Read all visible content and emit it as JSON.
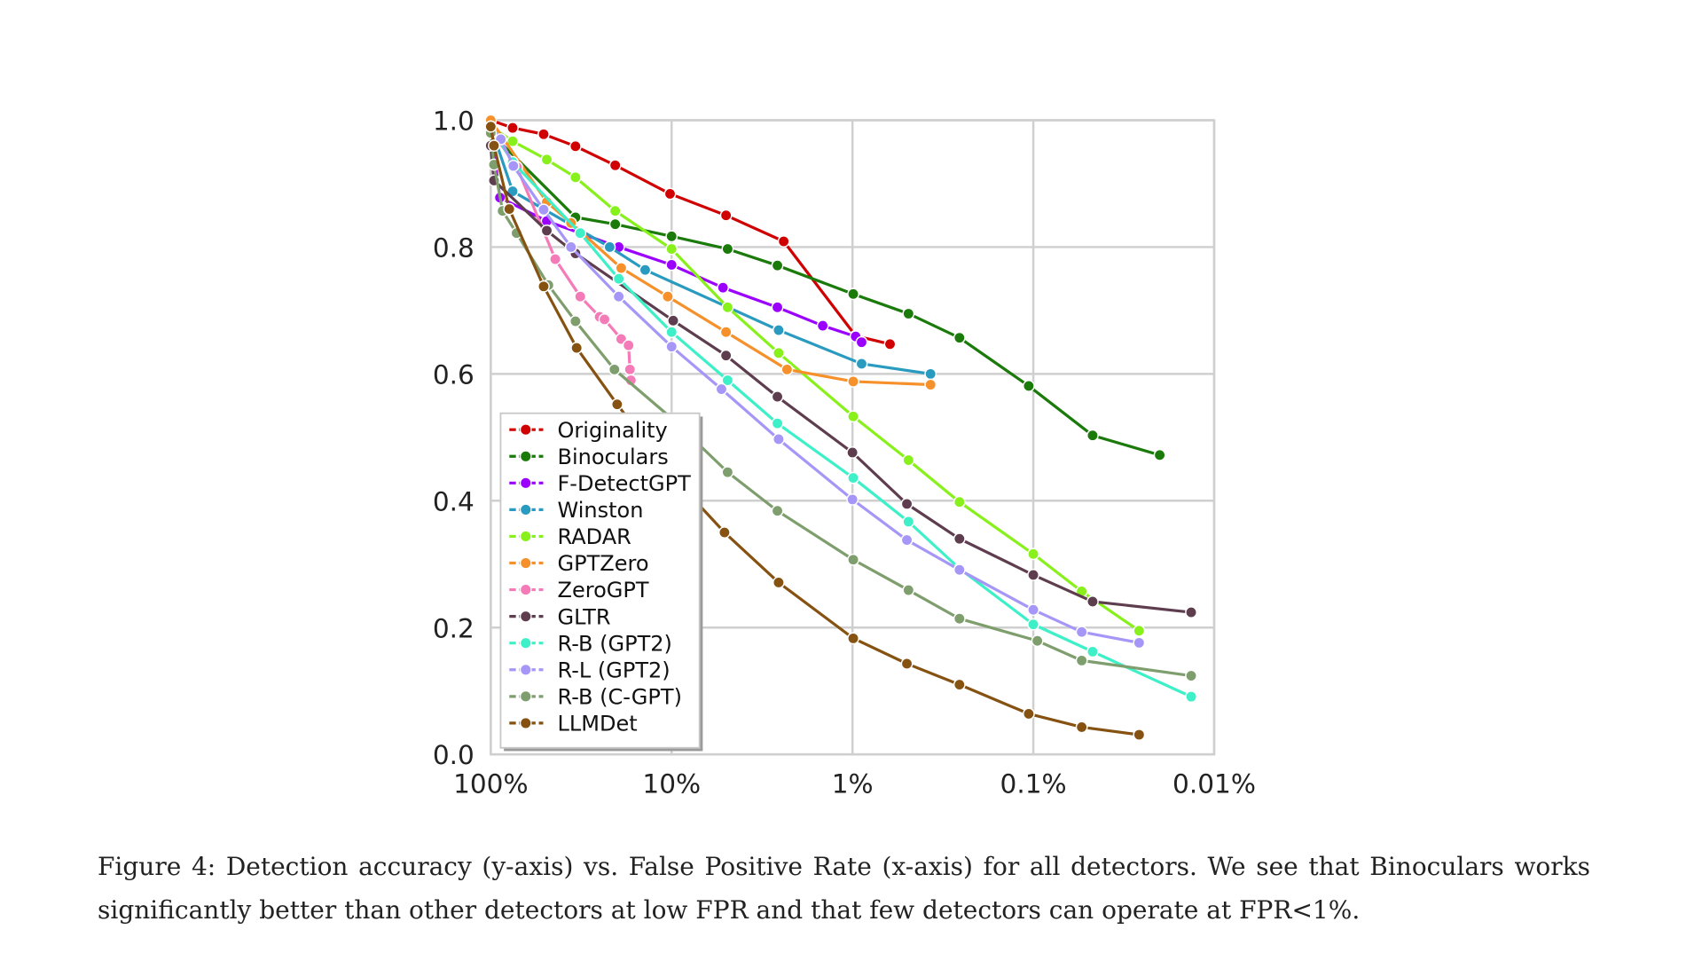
{
  "caption": "Figure 4: Detection accuracy (y-axis) vs. False Positive Rate (x-axis) for all detectors. We see that Binoculars works significantly better than other detectors at low FPR and that few detectors can operate at FPR<1%.",
  "chart_data": {
    "type": "line",
    "title": "",
    "xlabel": "",
    "ylabel": "",
    "x_scale": "log-reversed",
    "x_unit": "FPR %",
    "xlim": [
      100,
      0.01
    ],
    "ylim": [
      0,
      1.0
    ],
    "x_ticks": [
      100,
      10,
      1,
      0.1,
      0.01
    ],
    "x_tick_labels": [
      "100%",
      "10%",
      "1%",
      "0.1%",
      "0.01%"
    ],
    "y_ticks": [
      0,
      0.2,
      0.4,
      0.6,
      0.8,
      1.0
    ],
    "y_tick_labels": [
      "0.0",
      "0.2",
      "0.4",
      "0.6",
      "0.8",
      "1.0"
    ],
    "grid": true,
    "legend_position": "lower-left",
    "series": [
      {
        "name": "Originality",
        "color": "#d00000",
        "points": [
          [
            100,
            1.0
          ],
          [
            75.7,
            0.988
          ],
          [
            51,
            0.978
          ],
          [
            34,
            0.959
          ],
          [
            20.5,
            0.929
          ],
          [
            10.2,
            0.884
          ],
          [
            5.0,
            0.85
          ],
          [
            2.4,
            0.809
          ],
          [
            0.96,
            0.66
          ],
          [
            0.62,
            0.647
          ]
        ]
      },
      {
        "name": "Binoculars",
        "color": "#1a7a0a",
        "points": [
          [
            100,
            0.98
          ],
          [
            34,
            0.847
          ],
          [
            20.5,
            0.836
          ],
          [
            10,
            0.817
          ],
          [
            4.9,
            0.797
          ],
          [
            2.6,
            0.771
          ],
          [
            0.99,
            0.726
          ],
          [
            0.49,
            0.695
          ],
          [
            0.256,
            0.657
          ],
          [
            0.106,
            0.581
          ],
          [
            0.047,
            0.503
          ],
          [
            0.02,
            0.472
          ]
        ]
      },
      {
        "name": "F-DetectGPT",
        "color": "#9b00ff",
        "points": [
          [
            100,
            0.99
          ],
          [
            89,
            0.878
          ],
          [
            49,
            0.841
          ],
          [
            19.6,
            0.8
          ],
          [
            10,
            0.772
          ],
          [
            5.2,
            0.736
          ],
          [
            2.6,
            0.705
          ],
          [
            1.46,
            0.676
          ],
          [
            0.96,
            0.659
          ],
          [
            0.89,
            0.65
          ]
        ]
      },
      {
        "name": "Winston",
        "color": "#2a9bc0",
        "points": [
          [
            100,
            0.99
          ],
          [
            75.7,
            0.888
          ],
          [
            22,
            0.8
          ],
          [
            14,
            0.764
          ],
          [
            2.56,
            0.669
          ],
          [
            0.89,
            0.616
          ],
          [
            0.37,
            0.6
          ]
        ]
      },
      {
        "name": "RADAR",
        "color": "#88f01a",
        "points": [
          [
            100,
            0.99
          ],
          [
            75.7,
            0.967
          ],
          [
            49,
            0.938
          ],
          [
            34,
            0.91
          ],
          [
            20.5,
            0.857
          ],
          [
            10,
            0.797
          ],
          [
            4.9,
            0.705
          ],
          [
            2.56,
            0.633
          ],
          [
            0.99,
            0.533
          ],
          [
            0.49,
            0.464
          ],
          [
            0.256,
            0.398
          ],
          [
            0.1,
            0.316
          ],
          [
            0.054,
            0.257
          ],
          [
            0.026,
            0.195
          ]
        ]
      },
      {
        "name": "GPTZero",
        "color": "#f5902a",
        "points": [
          [
            100,
            1.0
          ],
          [
            49,
            0.871
          ],
          [
            36,
            0.838
          ],
          [
            19,
            0.767
          ],
          [
            10.5,
            0.722
          ],
          [
            5,
            0.666
          ],
          [
            2.3,
            0.607
          ],
          [
            0.99,
            0.588
          ],
          [
            0.37,
            0.583
          ]
        ]
      },
      {
        "name": "ZeroGPT",
        "color": "#f57ab8",
        "points": [
          [
            100,
            0.99
          ],
          [
            92,
            0.97
          ],
          [
            71.6,
            0.926
          ],
          [
            44,
            0.781
          ],
          [
            32,
            0.722
          ],
          [
            25,
            0.69
          ],
          [
            23.5,
            0.686
          ],
          [
            19,
            0.655
          ],
          [
            17.3,
            0.645
          ],
          [
            17,
            0.607
          ],
          [
            16.8,
            0.59
          ]
        ]
      },
      {
        "name": "GLTR",
        "color": "#5e3e4e",
        "points": [
          [
            100,
            0.96
          ],
          [
            96,
            0.905
          ],
          [
            49,
            0.826
          ],
          [
            34,
            0.79
          ],
          [
            9.8,
            0.684
          ],
          [
            5,
            0.629
          ],
          [
            2.6,
            0.564
          ],
          [
            1.0,
            0.476
          ],
          [
            0.5,
            0.395
          ],
          [
            0.256,
            0.34
          ],
          [
            0.1,
            0.283
          ],
          [
            0.047,
            0.241
          ],
          [
            0.0134,
            0.224
          ]
        ]
      },
      {
        "name": "R-B (GPT2)",
        "color": "#3ef0c8",
        "points": [
          [
            100,
            0.99
          ],
          [
            75.7,
            0.934
          ],
          [
            32,
            0.822
          ],
          [
            19.6,
            0.75
          ],
          [
            10,
            0.666
          ],
          [
            4.9,
            0.59
          ],
          [
            2.6,
            0.522
          ],
          [
            0.99,
            0.436
          ],
          [
            0.49,
            0.367
          ],
          [
            0.256,
            0.293
          ],
          [
            0.1,
            0.205
          ],
          [
            0.047,
            0.162
          ],
          [
            0.0134,
            0.091
          ]
        ]
      },
      {
        "name": "R-L (GPT2)",
        "color": "#a596f7",
        "points": [
          [
            100,
            0.99
          ],
          [
            88,
            0.97
          ],
          [
            75,
            0.928
          ],
          [
            51,
            0.859
          ],
          [
            36,
            0.8
          ],
          [
            19.6,
            0.722
          ],
          [
            10,
            0.643
          ],
          [
            5.3,
            0.576
          ],
          [
            2.56,
            0.497
          ],
          [
            1.0,
            0.402
          ],
          [
            0.5,
            0.338
          ],
          [
            0.256,
            0.291
          ],
          [
            0.1,
            0.228
          ],
          [
            0.054,
            0.193
          ],
          [
            0.026,
            0.176
          ]
        ]
      },
      {
        "name": "R-B (C-GPT)",
        "color": "#7f9e6e",
        "points": [
          [
            100,
            0.98
          ],
          [
            96,
            0.93
          ],
          [
            86,
            0.857
          ],
          [
            72,
            0.822
          ],
          [
            48,
            0.74
          ],
          [
            34,
            0.683
          ],
          [
            20.7,
            0.607
          ],
          [
            10,
            0.53
          ],
          [
            4.9,
            0.445
          ],
          [
            2.6,
            0.384
          ],
          [
            0.99,
            0.307
          ],
          [
            0.49,
            0.259
          ],
          [
            0.256,
            0.214
          ],
          [
            0.095,
            0.179
          ],
          [
            0.054,
            0.148
          ],
          [
            0.0134,
            0.124
          ]
        ]
      },
      {
        "name": "LLMDet",
        "color": "#865212",
        "points": [
          [
            100,
            0.99
          ],
          [
            96,
            0.96
          ],
          [
            79,
            0.86
          ],
          [
            51,
            0.738
          ],
          [
            33.5,
            0.641
          ],
          [
            20,
            0.552
          ],
          [
            10,
            0.44
          ],
          [
            5.1,
            0.35
          ],
          [
            2.56,
            0.271
          ],
          [
            0.99,
            0.183
          ],
          [
            0.5,
            0.143
          ],
          [
            0.256,
            0.11
          ],
          [
            0.106,
            0.064
          ],
          [
            0.054,
            0.043
          ],
          [
            0.026,
            0.031
          ]
        ]
      }
    ]
  }
}
